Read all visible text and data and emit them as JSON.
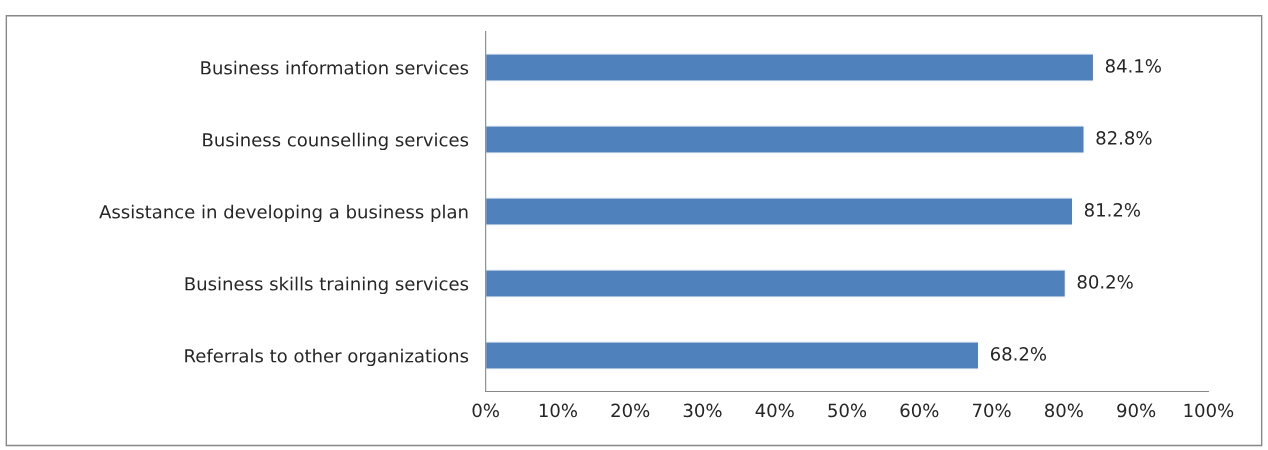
{
  "chart_data": {
    "type": "bar",
    "orientation": "horizontal",
    "categories": [
      "Business information services",
      "Business counselling services",
      "Assistance in developing a business plan",
      "Business skills training services",
      "Referrals to other organizations"
    ],
    "values": [
      84.1,
      82.8,
      81.2,
      80.2,
      68.2
    ],
    "value_labels": [
      "84.1%",
      "82.8%",
      "81.2%",
      "80.2%",
      "68.2%"
    ],
    "color": "#4f81bd",
    "xlim": [
      0,
      100
    ],
    "xticks": [
      {
        "value": 0,
        "label": "0%"
      },
      {
        "value": 10,
        "label": "10%"
      },
      {
        "value": 20,
        "label": "20%"
      },
      {
        "value": 30,
        "label": "30%"
      },
      {
        "value": 40,
        "label": "40%"
      },
      {
        "value": 50,
        "label": "50%"
      },
      {
        "value": 60,
        "label": "60%"
      },
      {
        "value": 70,
        "label": "70%"
      },
      {
        "value": 80,
        "label": "80%"
      },
      {
        "value": 90,
        "label": "90%"
      },
      {
        "value": 100,
        "label": "100%"
      }
    ],
    "grid": false,
    "legend": false
  }
}
